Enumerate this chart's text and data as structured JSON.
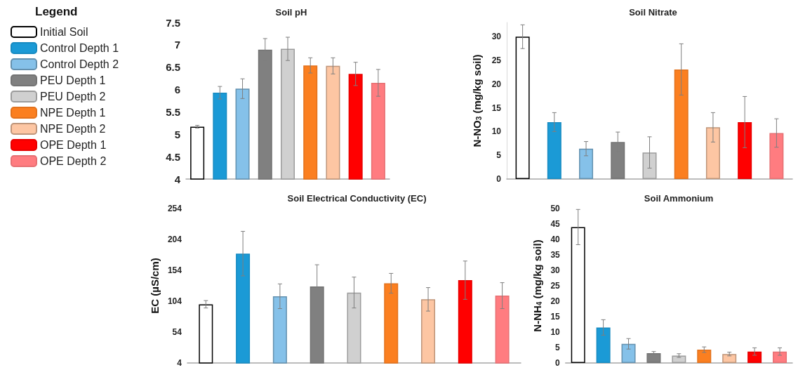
{
  "chart_data": [
    {
      "type": "bar",
      "title": "Soil pH",
      "legend_title": "Legend",
      "legend": "left",
      "grid": false,
      "tick_labels": "y",
      "ylim": [
        4,
        7.5
      ],
      "yticks": [
        4,
        4.5,
        5,
        5.5,
        6,
        6.5,
        7,
        7.5
      ],
      "categories": [
        null,
        null,
        null,
        null,
        null,
        null,
        null,
        null,
        null
      ],
      "series": [
        {
          "name": "Initial Soil",
          "color": "#ffffff",
          "values": [
            5.17,
            null,
            null,
            null,
            null,
            null,
            null,
            null,
            null
          ],
          "errors": [
            0.03,
            null,
            null,
            null,
            null,
            null,
            null,
            null,
            null
          ]
        },
        {
          "name": "Control Depth 1",
          "color": "#1b9ad6",
          "values": [
            null,
            5.93,
            null,
            null,
            null,
            null,
            null,
            null,
            null
          ],
          "errors": [
            null,
            0.14,
            null,
            null,
            null,
            null,
            null,
            null,
            null
          ]
        },
        {
          "name": "Control Depth 2",
          "color": "#85c1e9",
          "values": [
            null,
            null,
            6.02,
            null,
            null,
            null,
            null,
            null,
            null
          ],
          "errors": [
            null,
            null,
            0.22,
            null,
            null,
            null,
            null,
            null,
            null
          ]
        },
        {
          "name": "PEU Depth 1",
          "color": "#808080",
          "values": [
            null,
            null,
            null,
            6.89,
            null,
            null,
            null,
            null,
            null
          ],
          "errors": [
            null,
            null,
            null,
            0.25,
            null,
            null,
            null,
            null,
            null
          ]
        },
        {
          "name": "PEU Depth 2",
          "color": "#d0d0d0",
          "values": [
            null,
            null,
            null,
            null,
            6.91,
            null,
            null,
            null,
            null
          ],
          "errors": [
            null,
            null,
            null,
            null,
            0.26,
            null,
            null,
            null,
            null
          ]
        },
        {
          "name": "NPE Depth 1",
          "color": "#fb7f20",
          "values": [
            null,
            null,
            null,
            null,
            null,
            6.54,
            null,
            null,
            null
          ],
          "errors": [
            null,
            null,
            null,
            null,
            null,
            0.17,
            null,
            null,
            null
          ]
        },
        {
          "name": "NPE Depth 2",
          "color": "#fdc6a3",
          "values": [
            null,
            null,
            null,
            null,
            null,
            null,
            6.53,
            null,
            null
          ],
          "errors": [
            null,
            null,
            null,
            null,
            null,
            null,
            0.18,
            null,
            null
          ]
        },
        {
          "name": "OPE Depth 1",
          "color": "#ff0000",
          "values": [
            null,
            null,
            null,
            null,
            null,
            null,
            null,
            6.35,
            null
          ],
          "errors": [
            null,
            null,
            null,
            null,
            null,
            null,
            null,
            0.26,
            null
          ]
        },
        {
          "name": "OPE Depth 2",
          "color": "#ff7c80",
          "values": [
            null,
            null,
            null,
            null,
            null,
            null,
            null,
            null,
            6.15
          ],
          "errors": [
            null,
            null,
            null,
            null,
            null,
            null,
            null,
            null,
            0.3
          ]
        }
      ]
    },
    {
      "type": "bar",
      "title": "Soil Nitrate",
      "ylabel": "N-NO$_{3}$ (mg/kg soil)",
      "legend": false,
      "grid": false,
      "tick_labels": "y",
      "ylim": [
        0,
        33
      ],
      "yticks": [
        0,
        5,
        10,
        15,
        20,
        25,
        30
      ],
      "categories": [
        null,
        null,
        null,
        null,
        null,
        null,
        null,
        null,
        null
      ],
      "series": [
        {
          "color": "#ffffff",
          "values": [
            30,
            null,
            null,
            null,
            null,
            null,
            null,
            null,
            null
          ],
          "errors": [
            2.5,
            null,
            null,
            null,
            null,
            null,
            null,
            null,
            null
          ]
        },
        {
          "color": "#1b9ad6",
          "values": [
            null,
            12,
            null,
            null,
            null,
            null,
            null,
            null,
            null
          ],
          "errors": [
            null,
            2,
            null,
            null,
            null,
            null,
            null,
            null,
            null
          ]
        },
        {
          "color": "#85c1e9",
          "values": [
            null,
            null,
            6.4,
            null,
            null,
            null,
            null,
            null,
            null
          ],
          "errors": [
            null,
            null,
            1.5,
            null,
            null,
            null,
            null,
            null,
            null
          ]
        },
        {
          "color": "#808080",
          "values": [
            null,
            null,
            null,
            7.8,
            null,
            null,
            null,
            null,
            null
          ],
          "errors": [
            null,
            null,
            null,
            2.1,
            null,
            null,
            null,
            null,
            null
          ]
        },
        {
          "color": "#d0d0d0",
          "values": [
            null,
            null,
            null,
            null,
            5.6,
            null,
            null,
            null,
            null
          ],
          "errors": [
            null,
            null,
            null,
            null,
            3.3,
            null,
            null,
            null,
            null
          ]
        },
        {
          "color": "#fb7f20",
          "values": [
            null,
            null,
            null,
            null,
            null,
            23.1,
            null,
            null,
            null
          ],
          "errors": [
            null,
            null,
            null,
            null,
            null,
            5.4,
            null,
            null,
            null
          ]
        },
        {
          "color": "#fdc6a3",
          "values": [
            null,
            null,
            null,
            null,
            null,
            null,
            10.9,
            null,
            null
          ],
          "errors": [
            null,
            null,
            null,
            null,
            null,
            null,
            3.1,
            null,
            null
          ]
        },
        {
          "color": "#ff0000",
          "values": [
            null,
            null,
            null,
            null,
            null,
            null,
            null,
            12,
            null
          ],
          "errors": [
            null,
            null,
            null,
            null,
            null,
            null,
            null,
            5.4,
            null
          ]
        },
        {
          "color": "#ff7c80",
          "values": [
            null,
            null,
            null,
            null,
            null,
            null,
            null,
            null,
            9.7
          ],
          "errors": [
            null,
            null,
            null,
            null,
            null,
            null,
            null,
            null,
            3
          ]
        }
      ]
    },
    {
      "type": "bar",
      "title": "Soil Electrical Conductivity (EC)",
      "ylabel": "EC (µS/cm)",
      "legend": false,
      "grid": false,
      "tick_labels": "y",
      "ylim": [
        4,
        254
      ],
      "yticks": [
        4,
        54,
        104,
        154,
        204,
        254
      ],
      "categories": [
        null,
        null,
        null,
        null,
        null,
        null,
        null,
        null,
        null
      ],
      "series": [
        {
          "color": "#ffffff",
          "values": [
            99,
            null,
            null,
            null,
            null,
            null,
            null,
            null,
            null
          ],
          "errors": [
            6,
            null,
            null,
            null,
            null,
            null,
            null,
            null,
            null
          ]
        },
        {
          "color": "#1b9ad6",
          "values": [
            null,
            181,
            null,
            null,
            null,
            null,
            null,
            null,
            null
          ],
          "errors": [
            null,
            36,
            null,
            null,
            null,
            null,
            null,
            null,
            null
          ]
        },
        {
          "color": "#85c1e9",
          "values": [
            null,
            null,
            112,
            null,
            null,
            null,
            null,
            null,
            null
          ],
          "errors": [
            null,
            null,
            20,
            null,
            null,
            null,
            null,
            null,
            null
          ]
        },
        {
          "color": "#808080",
          "values": [
            null,
            null,
            null,
            128,
            null,
            null,
            null,
            null,
            null
          ],
          "errors": [
            null,
            null,
            null,
            35,
            null,
            null,
            null,
            null,
            null
          ]
        },
        {
          "color": "#d0d0d0",
          "values": [
            null,
            null,
            null,
            null,
            118,
            null,
            null,
            null,
            null
          ],
          "errors": [
            null,
            null,
            null,
            null,
            25,
            null,
            null,
            null,
            null
          ]
        },
        {
          "color": "#fb7f20",
          "values": [
            null,
            null,
            null,
            null,
            null,
            133,
            null,
            null,
            null
          ],
          "errors": [
            null,
            null,
            null,
            null,
            null,
            16,
            null,
            null,
            null
          ]
        },
        {
          "color": "#fdc6a3",
          "values": [
            null,
            null,
            null,
            null,
            null,
            null,
            107,
            null,
            null
          ],
          "errors": [
            null,
            null,
            null,
            null,
            null,
            null,
            19,
            null,
            null
          ]
        },
        {
          "color": "#ff0000",
          "values": [
            null,
            null,
            null,
            null,
            null,
            null,
            null,
            138,
            null
          ],
          "errors": [
            null,
            null,
            null,
            null,
            null,
            null,
            null,
            31,
            null
          ]
        },
        {
          "color": "#ff7c80",
          "values": [
            null,
            null,
            null,
            null,
            null,
            null,
            null,
            null,
            113
          ],
          "errors": [
            null,
            null,
            null,
            null,
            null,
            null,
            null,
            null,
            21
          ]
        }
      ]
    },
    {
      "type": "bar",
      "title": "Soil Ammonium",
      "ylabel": "N-NH$_{4}$ (mg/kg soil)",
      "legend": false,
      "grid": false,
      "tick_labels": "y",
      "ylim": [
        0,
        50
      ],
      "yticks": [
        0,
        5,
        10,
        15,
        20,
        25,
        30,
        35,
        40,
        45,
        50
      ],
      "categories": [
        null,
        null,
        null,
        null,
        null,
        null,
        null,
        null,
        null
      ],
      "series": [
        {
          "color": "#ffffff",
          "values": [
            44,
            null,
            null,
            null,
            null,
            null,
            null,
            null,
            null
          ],
          "errors": [
            5.7,
            null,
            null,
            null,
            null,
            null,
            null,
            null,
            null
          ]
        },
        {
          "color": "#1b9ad6",
          "values": [
            null,
            11.5,
            null,
            null,
            null,
            null,
            null,
            null,
            null
          ],
          "errors": [
            null,
            2.5,
            null,
            null,
            null,
            null,
            null,
            null,
            null
          ]
        },
        {
          "color": "#85c1e9",
          "values": [
            null,
            null,
            6.2,
            null,
            null,
            null,
            null,
            null,
            null
          ],
          "errors": [
            null,
            null,
            1.7,
            null,
            null,
            null,
            null,
            null,
            null
          ]
        },
        {
          "color": "#808080",
          "values": [
            null,
            null,
            null,
            3.2,
            null,
            null,
            null,
            null,
            null
          ],
          "errors": [
            null,
            null,
            null,
            0.5,
            null,
            null,
            null,
            null,
            null
          ]
        },
        {
          "color": "#d0d0d0",
          "values": [
            null,
            null,
            null,
            null,
            2.4,
            null,
            null,
            null,
            null
          ],
          "errors": [
            null,
            null,
            null,
            null,
            0.6,
            null,
            null,
            null,
            null
          ]
        },
        {
          "color": "#fb7f20",
          "values": [
            null,
            null,
            null,
            null,
            null,
            4.3,
            null,
            null,
            null
          ],
          "errors": [
            null,
            null,
            null,
            null,
            null,
            0.9,
            null,
            null,
            null
          ]
        },
        {
          "color": "#fdc6a3",
          "values": [
            null,
            null,
            null,
            null,
            null,
            null,
            2.9,
            null,
            null
          ],
          "errors": [
            null,
            null,
            null,
            null,
            null,
            null,
            0.6,
            null,
            null
          ]
        },
        {
          "color": "#ff0000",
          "values": [
            null,
            null,
            null,
            null,
            null,
            null,
            null,
            3.7,
            null
          ],
          "errors": [
            null,
            null,
            null,
            null,
            null,
            null,
            null,
            1.2,
            null
          ]
        },
        {
          "color": "#ff7c80",
          "values": [
            null,
            null,
            null,
            null,
            null,
            null,
            null,
            null,
            3.7
          ],
          "errors": [
            null,
            null,
            null,
            null,
            null,
            null,
            null,
            null,
            1.2
          ]
        }
      ]
    }
  ]
}
